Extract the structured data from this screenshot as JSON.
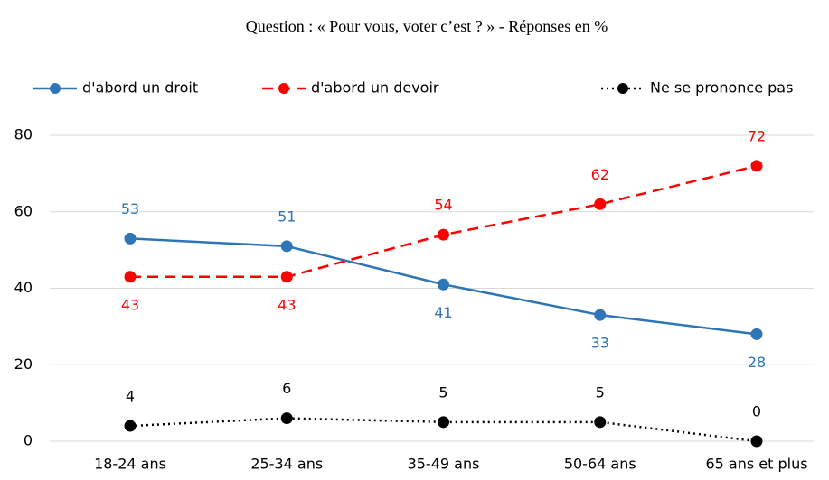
{
  "chart_data": {
    "type": "line",
    "title": "Question : « Pour vous, voter c’est ? » - Réponses en %",
    "categories": [
      "18-24 ans",
      "25-34 ans",
      "35-49 ans",
      "50-64 ans",
      "65 ans et plus"
    ],
    "series": [
      {
        "name": "d'abord un droit",
        "color": "#2e75b6",
        "dash": "solid",
        "values": [
          53,
          51,
          41,
          33,
          28
        ]
      },
      {
        "name": "d'abord un devoir",
        "color": "#ff0000",
        "dash": "dashed",
        "values": [
          43,
          43,
          54,
          62,
          72
        ]
      },
      {
        "name": "Ne se prononce pas",
        "color": "#000000",
        "dash": "dotted",
        "values": [
          4,
          6,
          5,
          5,
          0
        ]
      }
    ],
    "ylim": [
      0,
      80
    ],
    "yticks": [
      0,
      20,
      40,
      60,
      80
    ],
    "grid": true,
    "legend": "top"
  }
}
